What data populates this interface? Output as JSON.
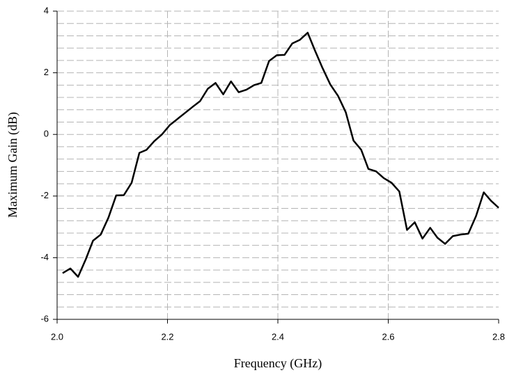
{
  "chart_data": {
    "type": "line",
    "xlabel": "Frequency (GHz)",
    "ylabel": "Maximum Gain (dB)",
    "x": [
      2.01,
      2.024,
      2.038,
      2.052,
      2.065,
      2.079,
      2.093,
      2.107,
      2.121,
      2.135,
      2.149,
      2.162,
      2.176,
      2.19,
      2.204,
      2.218,
      2.232,
      2.246,
      2.259,
      2.273,
      2.287,
      2.301,
      2.315,
      2.329,
      2.343,
      2.357,
      2.37,
      2.384,
      2.398,
      2.412,
      2.426,
      2.44,
      2.454,
      2.467,
      2.481,
      2.495,
      2.509,
      2.523,
      2.537,
      2.551,
      2.564,
      2.578,
      2.592,
      2.606,
      2.62,
      2.634,
      2.648,
      2.662,
      2.676,
      2.689,
      2.703,
      2.717,
      2.731,
      2.745,
      2.759,
      2.773,
      2.786,
      2.8
    ],
    "series": [
      {
        "color": "#000000",
        "values": [
          -4.5,
          -4.35,
          -4.62,
          -4.05,
          -3.45,
          -3.25,
          -2.7,
          -1.98,
          -1.97,
          -1.57,
          -0.6,
          -0.5,
          -0.22,
          0.0,
          0.3,
          0.5,
          0.7,
          0.9,
          1.08,
          1.48,
          1.67,
          1.3,
          1.72,
          1.37,
          1.45,
          1.6,
          1.67,
          2.38,
          2.57,
          2.58,
          2.95,
          3.07,
          3.3,
          2.73,
          2.15,
          1.62,
          1.25,
          0.72,
          -0.2,
          -0.5,
          -1.12,
          -1.2,
          -1.42,
          -1.57,
          -1.85,
          -3.1,
          -2.85,
          -3.38,
          -3.03,
          -3.35,
          -3.55,
          -3.3,
          -3.25,
          -3.22,
          -2.65,
          -1.88,
          -2.15,
          -2.38
        ]
      }
    ],
    "xlim": [
      2.0,
      2.8
    ],
    "ylim": [
      -6,
      4
    ],
    "xticks": [
      {
        "value": 2.0,
        "label": "2.0"
      },
      {
        "value": 2.2,
        "label": "2.2"
      },
      {
        "value": 2.4,
        "label": "2.4"
      },
      {
        "value": 2.6,
        "label": "2.6"
      },
      {
        "value": 2.8,
        "label": "2.8"
      }
    ],
    "yticks": [
      -6,
      -4,
      -2,
      0,
      2,
      4
    ],
    "grid": true
  }
}
